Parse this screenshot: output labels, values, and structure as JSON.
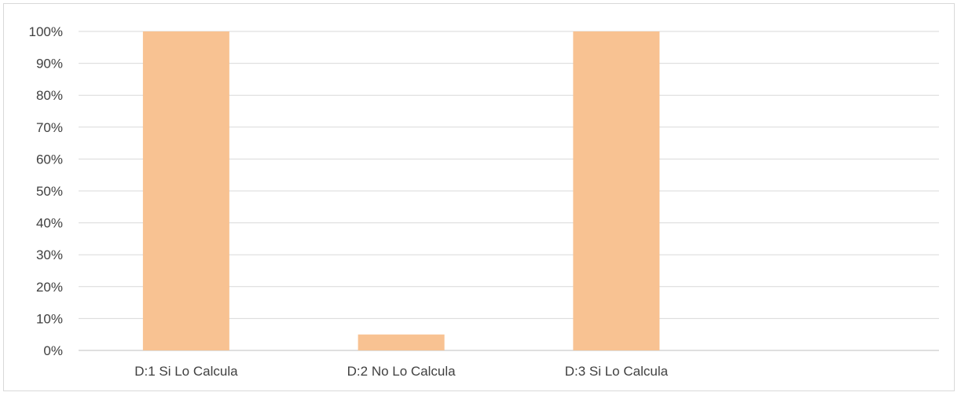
{
  "chart_data": {
    "type": "bar",
    "categories": [
      "D:1  Si Lo Calcula",
      "D:2  No Lo Calcula",
      "D:3  Si Lo Calcula",
      ""
    ],
    "values": [
      100,
      5,
      100,
      null
    ],
    "yticks": [
      "0%",
      "10%",
      "20%",
      "30%",
      "40%",
      "50%",
      "60%",
      "70%",
      "80%",
      "90%",
      "100%"
    ],
    "ylim": [
      0,
      100
    ],
    "grid": true,
    "bar_color": "#f8c292",
    "grid_color": "#d9d9d9",
    "axis_color": "#bfbfbf"
  }
}
